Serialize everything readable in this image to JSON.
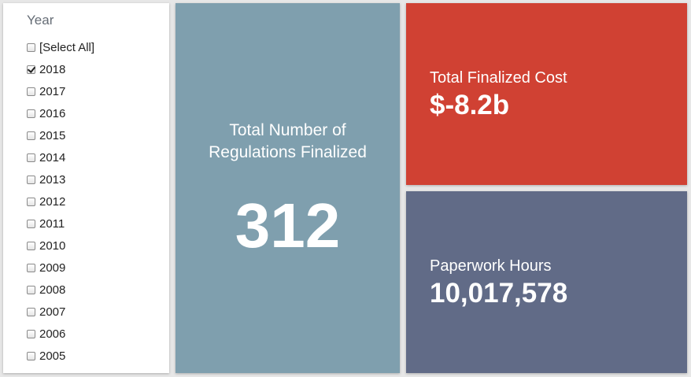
{
  "filter": {
    "title": "Year",
    "items": [
      {
        "label": "[Select All]",
        "checked": false
      },
      {
        "label": "2018",
        "checked": true
      },
      {
        "label": "2017",
        "checked": false
      },
      {
        "label": "2016",
        "checked": false
      },
      {
        "label": "2015",
        "checked": false
      },
      {
        "label": "2014",
        "checked": false
      },
      {
        "label": "2013",
        "checked": false
      },
      {
        "label": "2012",
        "checked": false
      },
      {
        "label": "2011",
        "checked": false
      },
      {
        "label": "2010",
        "checked": false
      },
      {
        "label": "2009",
        "checked": false
      },
      {
        "label": "2008",
        "checked": false
      },
      {
        "label": "2007",
        "checked": false
      },
      {
        "label": "2006",
        "checked": false
      },
      {
        "label": "2005",
        "checked": false
      }
    ]
  },
  "regulations": {
    "label": "Total Number of Regulations Finalized",
    "value": "312",
    "color": "#7f9fae"
  },
  "cost": {
    "label": "Total Finalized Cost",
    "value": "$-8.2b",
    "color": "#d04133"
  },
  "hours": {
    "label": "Paperwork Hours",
    "value": "10,017,578",
    "color": "#616b87"
  }
}
